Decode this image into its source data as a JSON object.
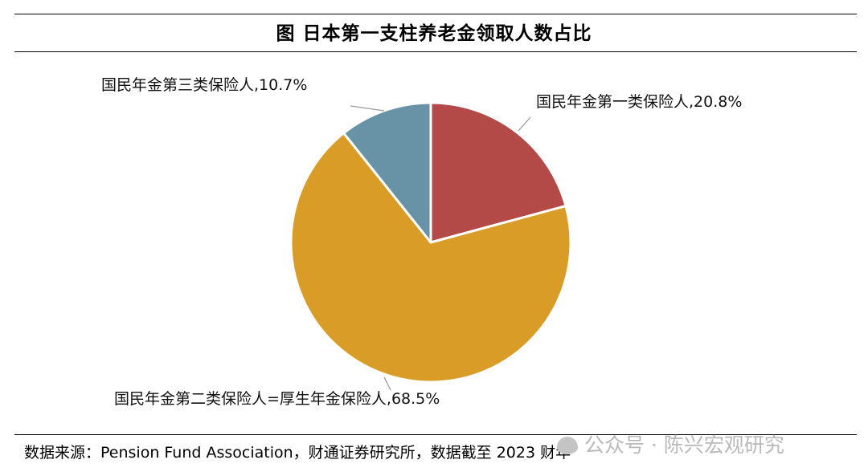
{
  "title": "图 日本第一支柱养老金领取人数占比",
  "chart_data": {
    "type": "pie",
    "title": "图 日本第一支柱养老金领取人数占比",
    "start_angle_deg": 0,
    "direction": "clockwise",
    "slices": [
      {
        "label": "国民年金第一类保险人,20.8%",
        "value": 20.8,
        "color": "#b34a48"
      },
      {
        "label": "国民年金第二类保险人=厚生年金保险人,68.5%",
        "value": 68.5,
        "color": "#d89c27"
      },
      {
        "label": "国民年金第三类保险人,10.7%",
        "value": 10.7,
        "color": "#6893a6"
      }
    ]
  },
  "source": "数据来源：Pension Fund Association，财通证券研究所，数据截至 2023 财年",
  "watermark": {
    "text": "公众号 · 陈兴宏观研究",
    "icon": "wechat-icon"
  }
}
